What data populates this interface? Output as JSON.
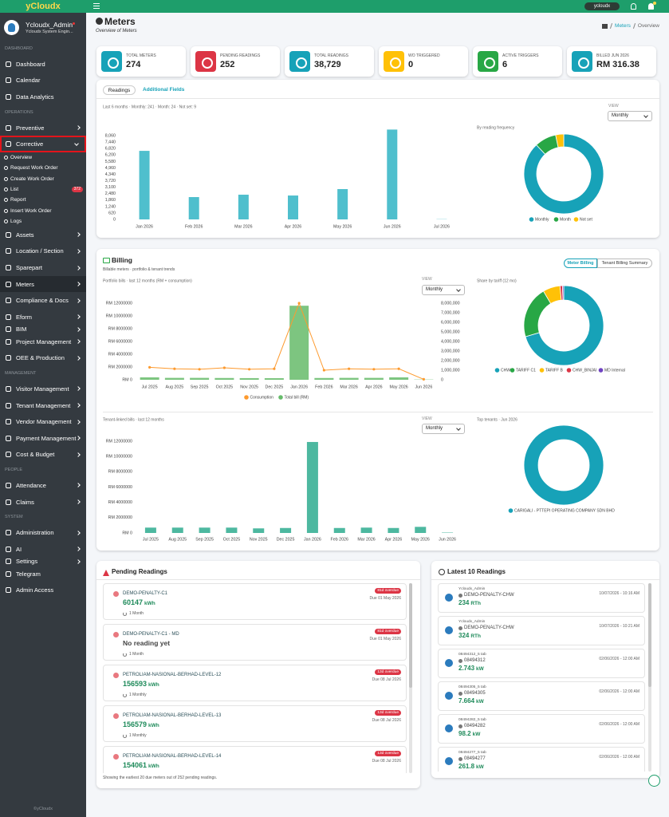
{
  "sidebar": {
    "brand": "yCloudx",
    "user": {
      "name": "Ycloudx_Admin",
      "role": "Ycloudx System Engin..."
    },
    "sections": [
      {
        "label": "DASHBOARD",
        "items": [
          {
            "label": "Dashboard"
          },
          {
            "label": "Calendar"
          },
          {
            "label": "Data Analytics"
          }
        ]
      },
      {
        "label": "OPERATIONS",
        "items": [
          {
            "label": "Preventive",
            "expandable": true
          },
          {
            "label": "Corrective",
            "expandable": true,
            "open": true,
            "children": [
              {
                "label": "Overview"
              },
              {
                "label": "Request Work Order"
              },
              {
                "label": "Create Work Order"
              },
              {
                "label": "List",
                "badge": 372
              },
              {
                "label": "Report"
              },
              {
                "label": "Insert Work Order"
              },
              {
                "label": "Logs"
              }
            ]
          },
          {
            "label": "Assets",
            "expandable": true
          },
          {
            "label": "Location / Section",
            "expandable": true
          },
          {
            "label": "Sparepart",
            "expandable": true
          },
          {
            "label": "Meters",
            "expandable": true,
            "active": true
          },
          {
            "label": "Compliance & Docs",
            "expandable": true
          },
          {
            "label": "Eform",
            "expandable": true
          },
          {
            "label": "BIM",
            "expandable": true
          },
          {
            "label": "Project Management",
            "expandable": true
          },
          {
            "label": "OEE & Production",
            "expandable": true
          }
        ]
      },
      {
        "label": "MANAGEMENT",
        "items": [
          {
            "label": "Visitor Management",
            "expandable": true
          },
          {
            "label": "Tenant Management",
            "expandable": true
          },
          {
            "label": "Vendor Management",
            "expandable": true
          },
          {
            "label": "Payment Management",
            "expandable": true
          },
          {
            "label": "Cost & Budget",
            "expandable": true
          }
        ]
      },
      {
        "label": "PEOPLE",
        "items": [
          {
            "label": "Attendance",
            "expandable": true
          },
          {
            "label": "Claims",
            "expandable": true
          }
        ]
      },
      {
        "label": "SYSTEM",
        "items": [
          {
            "label": "Administration",
            "expandable": true
          },
          {
            "label": "AI",
            "expandable": true
          },
          {
            "label": "Settings",
            "expandable": true
          },
          {
            "label": "Telegram"
          },
          {
            "label": "Admin Access"
          }
        ]
      }
    ],
    "footer": "©yCloudx"
  },
  "topbar": {
    "user_badge": "ycloudx"
  },
  "page": {
    "title": "Meters",
    "subtitle": "Overview of Meters",
    "breadcrumb": [
      "Meters",
      "Overview"
    ]
  },
  "stats": [
    {
      "label": "TOTAL METERS",
      "value": "274",
      "color": "#17a2b8"
    },
    {
      "label": "PENDING READINGS",
      "value": "252",
      "color": "#dc3545"
    },
    {
      "label": "TOTAL READINGS",
      "value": "38,729",
      "color": "#17a2b8"
    },
    {
      "label": "WO TRIGGERED",
      "value": "0",
      "color": "#ffc107"
    },
    {
      "label": "ACTIVE TRIGGERS",
      "value": "6",
      "color": "#28a745"
    },
    {
      "label": "BILLED JUN 2026",
      "value": "RM 316.38",
      "color": "#17a2b8"
    }
  ],
  "readings": {
    "tabs": [
      "Readings",
      "Additional Fields"
    ],
    "view_label": "VIEW",
    "view": "Monthly"
  },
  "billing": {
    "title": "Billing",
    "subtitle": "Billable meters · portfolio & tenant trends",
    "buttons": [
      "Meter Billing",
      "Tenant Billing Summary"
    ],
    "view_label": "VIEW",
    "view": "Monthly"
  },
  "pending": {
    "title": "Pending Readings",
    "items": [
      {
        "name": "DEMO-PENALTY-C1",
        "value": 60147,
        "unit": "kWh",
        "badge": "81d overdue",
        "due": "Due 01 May 2026",
        "frequency": "1 Month"
      },
      {
        "name": "DEMO-PENALTY-C1 - MD",
        "value": "No reading yet",
        "badge": "81d overdue",
        "due": "Due 01 May 2026",
        "frequency": "1 Month"
      },
      {
        "name": "PETROLIAM-NASIONAL-BERHAD-LEVEL-12",
        "value": 156593,
        "unit": "kWh",
        "badge": "13d overdue",
        "due": "Due 08 Jul 2026",
        "frequency": "1 Monthly"
      },
      {
        "name": "PETROLIAM-NASIONAL-BERHAD-LEVEL-13",
        "value": 156579,
        "unit": "kWh",
        "badge": "13d overdue",
        "due": "Due 08 Jul 2026",
        "frequency": "1 Monthly"
      },
      {
        "name": "PETROLIAM-NASIONAL-BERHAD-LEVEL-14",
        "value": 154061,
        "unit": "kWh",
        "badge": "13d overdue",
        "due": "Due 08 Jul 2026"
      }
    ],
    "footer": "Showing the earliest 20 due meters out of 252 pending readings."
  },
  "latest": {
    "title": "Latest 10 Readings",
    "items": [
      {
        "user": "Ycloudx_Admin",
        "meter": "DEMO-PENALTY-CHW",
        "value": 234,
        "unit": "RTh",
        "time": "10/07/2026 - 10:16 AM"
      },
      {
        "user": "Ycloudx_Admin",
        "meter": "DEMO-PENALTY-CHW",
        "value": 324,
        "unit": "RTh",
        "time": "10/07/2026 - 10:21 AM"
      },
      {
        "user": "08494312_5 tab",
        "meter": "08494312",
        "value": 2.743,
        "unit": "kW",
        "time": "02/06/2026 - 12:00 AM"
      },
      {
        "user": "08494305_5 tab",
        "meter": "08494305",
        "value": 7.664,
        "unit": "kW",
        "time": "02/06/2026 - 12:00 AM"
      },
      {
        "user": "08494282_5 tab",
        "meter": "08494282",
        "value": 98.2,
        "unit": "kW",
        "time": "02/06/2026 - 12:00 AM"
      },
      {
        "user": "08494277_5 tab",
        "meter": "08494277",
        "value": 261.8,
        "unit": "kW",
        "time": "02/06/2026 - 12:00 AM"
      }
    ]
  },
  "chart_data": [
    {
      "type": "bar",
      "title": "Last 6 months · Monthly: 241 · Month: 24 · Not set: 9",
      "categories": [
        "Jan 2026",
        "Feb 2026",
        "Mar 2026",
        "Apr 2026",
        "May 2026",
        "Jun 2026",
        "Jul 2026"
      ],
      "values": [
        6600,
        2150,
        2380,
        2300,
        2920,
        8650,
        20
      ],
      "color": "#4fbfcd",
      "ylim": [
        0,
        8680
      ],
      "yticks": [
        0,
        620,
        {
          "value": 1240,
          "label": "1,240"
        },
        {
          "value": 1860,
          "label": "1,860"
        },
        {
          "value": 2480,
          "label": "2,480"
        },
        {
          "value": 3100,
          "label": "3,100"
        },
        {
          "value": 3720,
          "label": "3,720"
        },
        {
          "value": 4340,
          "label": "4,340"
        },
        {
          "value": 4960,
          "label": "4,960"
        },
        {
          "value": 5580,
          "label": "5,580"
        },
        {
          "value": 6200,
          "label": "6,200"
        },
        {
          "value": 6820,
          "label": "6,820"
        },
        {
          "value": 7440,
          "label": "7,440"
        },
        {
          "value": 8060,
          "label": "8,060"
        }
      ]
    },
    {
      "type": "pie",
      "title": "By reading frequency",
      "donut": true,
      "legend": "bottom",
      "categories": [
        "Monthly",
        "Month",
        "Not set"
      ],
      "values": [
        241,
        24,
        9
      ],
      "colors": [
        "#17a2b8",
        "#28a745",
        "#ffc107"
      ]
    },
    {
      "type": "bar",
      "title": "Portfolio bills · last 12 months (RM + consumption)",
      "legend": "bottom",
      "categories": [
        "Jul 2025",
        "Aug 2025",
        "Sep 2025",
        "Oct 2025",
        "Nov 2025",
        "Dec 2025",
        "Jan 2026",
        "Feb 2026",
        "Mar 2026",
        "Apr 2026",
        "May 2026",
        "Jun 2026"
      ],
      "series": [
        {
          "name": "Consumption",
          "type": "line",
          "axis": "y2",
          "color": "#fd9a2e",
          "values": [
            1300000,
            1150000,
            1100000,
            1250000,
            1100000,
            1150000,
            8000000,
            1000000,
            1150000,
            1100000,
            1150000,
            50000
          ]
        },
        {
          "name": "Total bill (RM)",
          "type": "bar",
          "color": "#66bb6a",
          "values": [
            380000,
            300000,
            300000,
            280000,
            260000,
            250000,
            11600000,
            280000,
            300000,
            300000,
            380000,
            40000
          ]
        }
      ],
      "ylim": [
        0,
        12000000
      ],
      "yticks": [
        {
          "value": 0,
          "label": "RM 0"
        },
        {
          "value": 2000000,
          "label": "RM 2000000"
        },
        {
          "value": 4000000,
          "label": "RM 4000000"
        },
        {
          "value": 6000000,
          "label": "RM 6000000"
        },
        {
          "value": 8000000,
          "label": "RM 8000000"
        },
        {
          "value": 10000000,
          "label": "RM 10000000"
        },
        {
          "value": 12000000,
          "label": "RM 12000000"
        }
      ],
      "y2lim": [
        0,
        8000000
      ],
      "y2ticks": [
        0,
        {
          "value": 1000000,
          "label": "1,000,000"
        },
        {
          "value": 2000000,
          "label": "2,000,000"
        },
        {
          "value": 3000000,
          "label": "3,000,000"
        },
        {
          "value": 4000000,
          "label": "4,000,000"
        },
        {
          "value": 5000000,
          "label": "5,000,000"
        },
        {
          "value": 6000000,
          "label": "6,000,000"
        },
        {
          "value": 7000000,
          "label": "7,000,000"
        },
        {
          "value": 8000000,
          "label": "8,000,000"
        }
      ]
    },
    {
      "type": "pie",
      "title": "Share by tariff (12 mo)",
      "donut": true,
      "legend": "bottom",
      "categories": [
        "CHW",
        "TARIFF C1",
        "TARIFF B",
        "CHW_BINJAI",
        "MD Internal"
      ],
      "values": [
        70.5,
        21,
        7,
        1,
        0.5
      ],
      "colors": [
        "#17a2b8",
        "#28a745",
        "#ffc107",
        "#dc3545",
        "#6f42c1"
      ]
    },
    {
      "type": "bar",
      "title": "Tenant-linked bills · last 12 months",
      "categories": [
        "Jul 2025",
        "Aug 2025",
        "Sep 2025",
        "Oct 2025",
        "Nov 2025",
        "Dec 2025",
        "Jan 2026",
        "Feb 2026",
        "Mar 2026",
        "Apr 2026",
        "May 2026",
        "Jun 2026"
      ],
      "values": [
        700000,
        700000,
        700000,
        700000,
        600000,
        650000,
        11900000,
        650000,
        700000,
        650000,
        800000,
        50000
      ],
      "color": "#4db8a0",
      "ylim": [
        0,
        12000000
      ],
      "yticks": [
        {
          "value": 0,
          "label": "RM 0"
        },
        {
          "value": 2000000,
          "label": "RM 2000000"
        },
        {
          "value": 4000000,
          "label": "RM 4000000"
        },
        {
          "value": 6000000,
          "label": "RM 6000000"
        },
        {
          "value": 8000000,
          "label": "RM 8000000"
        },
        {
          "value": 10000000,
          "label": "RM 10000000"
        },
        {
          "value": 12000000,
          "label": "RM 12000000"
        }
      ]
    },
    {
      "type": "pie",
      "title": "Top tenants · Jun 2026",
      "donut": true,
      "legend": "bottom",
      "categories": [
        "CARIGALI - PTTEPI OPERATING COMPANY SDN BHD"
      ],
      "values": [
        100
      ],
      "colors": [
        "#17a2b8"
      ]
    }
  ]
}
